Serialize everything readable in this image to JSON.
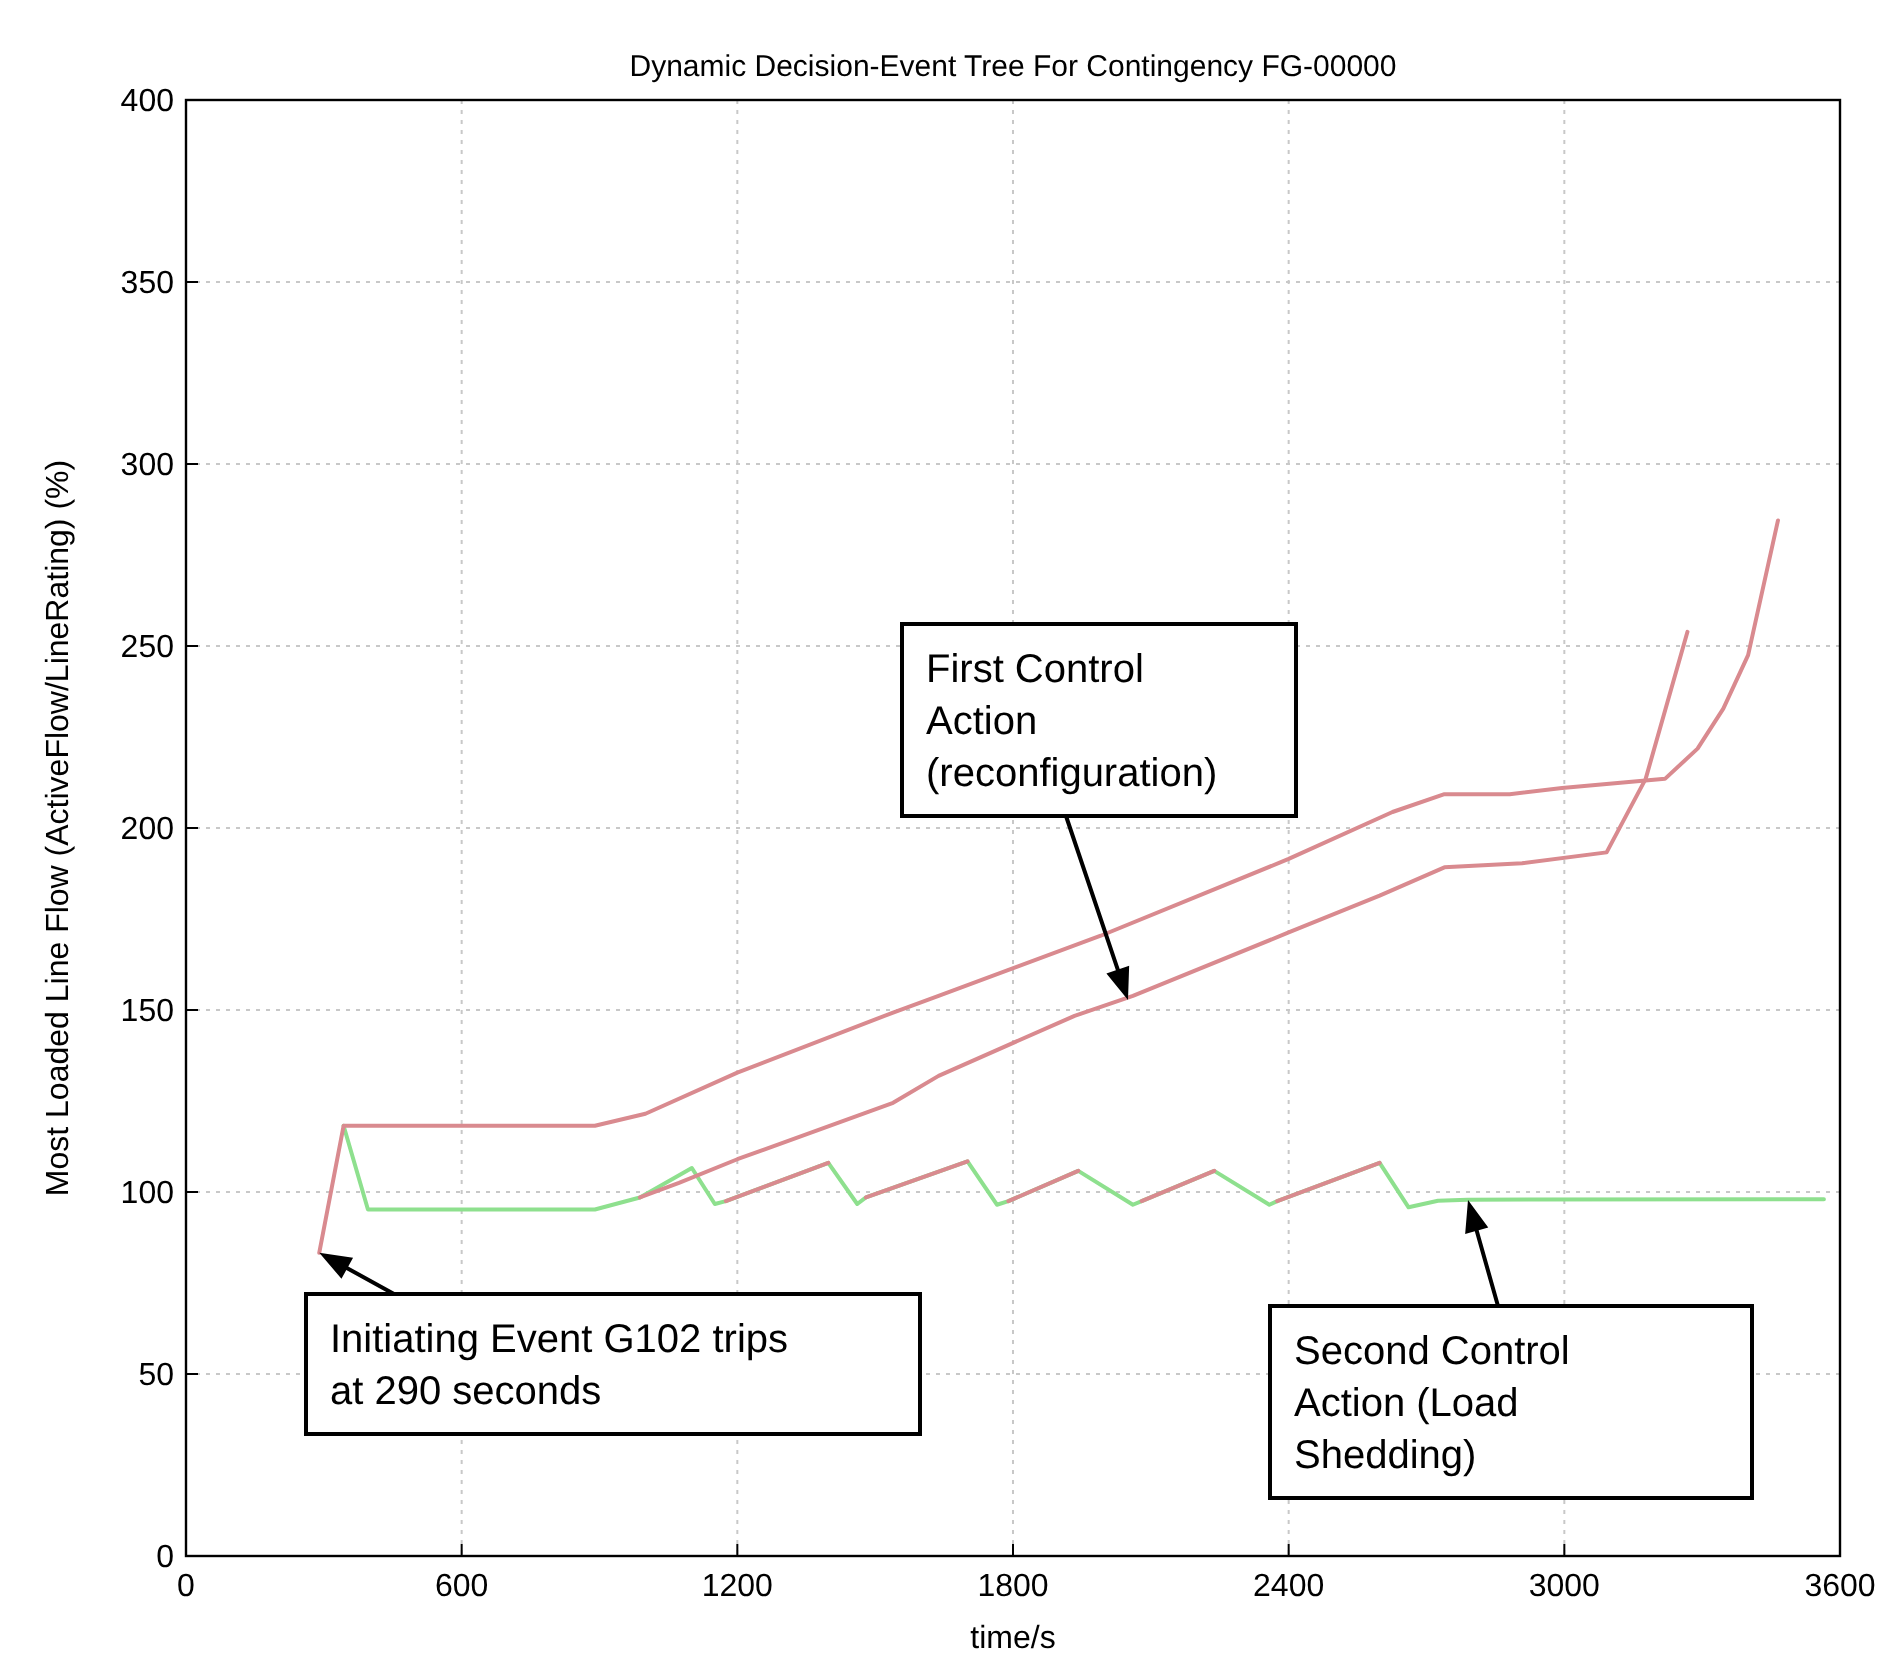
{
  "chart_data": {
    "type": "line",
    "title": "Dynamic Decision-Event Tree For Contingency FG-00000",
    "xlabel": "time/s",
    "ylabel": "Most Loaded Line Flow (ActiveFlow/LineRating) (%)",
    "xlim": [
      0,
      3600
    ],
    "xticks": [
      0,
      600,
      1200,
      1800,
      2400,
      3000,
      3600
    ],
    "ylim": [
      0,
      400
    ],
    "yticks": [
      0,
      50,
      100,
      150,
      200,
      250,
      300,
      350,
      400
    ],
    "grid": true,
    "marker": "none",
    "line_style": "solid",
    "series": [
      {
        "color": "#8ee08e",
        "x": [
          343,
          396,
          890,
          988,
          1101,
          1151,
          1175,
          1398,
          1461,
          1480,
          1701,
          1765,
          1790,
          1942,
          2061,
          2080,
          2238,
          2358,
          2375,
          2598,
          2661,
          2725,
          2789,
          3565
        ],
        "values": [
          118.2,
          95.2,
          95.2,
          98.5,
          106.6,
          96.7,
          97.5,
          108,
          96.7,
          98.5,
          108.4,
          96.5,
          97.5,
          105.8,
          96.5,
          97.5,
          105.8,
          96.5,
          97.5,
          108,
          95.8,
          97.6,
          97.9,
          98
        ]
      },
      {
        "color": "#d98a8f",
        "x": [
          290,
          343,
          890,
          1000,
          1200,
          1539,
          1638,
          1991,
          2400,
          2626,
          2739,
          2881,
          2995,
          3219,
          3290,
          3346,
          3400,
          3465
        ],
        "values": [
          83.3,
          118.2,
          118.2,
          121.5,
          132.8,
          149.3,
          153.9,
          170.4,
          191.5,
          204.4,
          209.3,
          209.3,
          211,
          213.5,
          221.8,
          232.8,
          247.5,
          284.5
        ]
      },
      {
        "color": "#d98a8f",
        "x": [
          988,
          1073,
          1200,
          1539,
          1638,
          1934,
          2061,
          2400,
          2598,
          2739,
          2908,
          3092,
          3177,
          3268
        ],
        "values": [
          98.5,
          102.5,
          109,
          124.5,
          131.9,
          148.4,
          153.9,
          171.3,
          181.4,
          189.2,
          190.3,
          193.3,
          213.5,
          253.9
        ]
      },
      {
        "color": "#d98a8f",
        "x": [
          1175,
          1398,
          1440,
          1480,
          1701,
          1745,
          1790,
          1942,
          2010,
          2080,
          2238,
          2300,
          2375,
          2598
        ],
        "values": [
          97.5,
          108,
          null,
          98.5,
          108.4,
          null,
          97.5,
          105.8,
          null,
          97.5,
          105.8,
          null,
          97.5,
          108
        ]
      }
    ],
    "annotations": [
      {
        "text": "Initiating Event G102 trips\nat 290 seconds",
        "x": 290,
        "y": 83.3
      },
      "First Control\nAction\n(reconfiguration)",
      "Second Control\nAction (Load\nShedding)"
    ]
  }
}
